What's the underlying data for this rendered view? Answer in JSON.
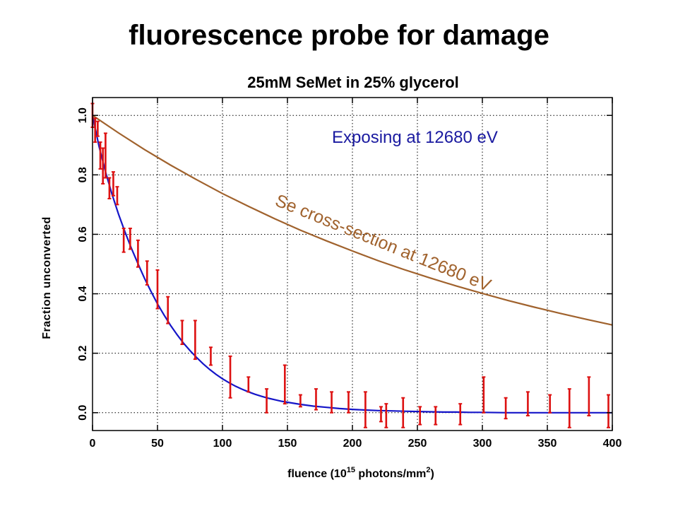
{
  "page": {
    "title": "fluorescence probe for damage"
  },
  "chart_data": {
    "type": "line",
    "title": "25mM SeMet in 25% glycerol",
    "xlabel": {
      "prefix": "fluence (10",
      "exp": "15",
      "mid": " photons/mm",
      "exp2": "2",
      "suffix": ")"
    },
    "ylabel": "Fraction unconverted",
    "xlim": [
      0,
      400
    ],
    "ylim": [
      -0.06,
      1.06
    ],
    "x_ticks": [
      0,
      50,
      100,
      150,
      200,
      250,
      300,
      350,
      400
    ],
    "x_tick_labels": [
      "0",
      "50",
      "100",
      "150",
      "200",
      "250",
      "300",
      "350",
      "400"
    ],
    "y_ticks": [
      0.0,
      0.2,
      0.4,
      0.6,
      0.8,
      1.0
    ],
    "y_tick_labels": [
      "0.0",
      "0.2",
      "0.4",
      "0.6",
      "0.8",
      "1.0"
    ],
    "grid": true,
    "annotations": [
      {
        "text": "Exposing at 12680 eV",
        "color": "#1a1aa0"
      },
      {
        "text": "Se cross-section at 12680 eV",
        "color": "#a0622d"
      }
    ],
    "series": [
      {
        "type": "errorbar",
        "color": "#dd1111",
        "points": [
          {
            "x": 0,
            "low": 0.96,
            "high": 1.04
          },
          {
            "x": 2,
            "low": 0.91,
            "high": 0.99
          },
          {
            "x": 4,
            "low": 0.93,
            "high": 0.98
          },
          {
            "x": 6,
            "low": 0.82,
            "high": 0.91
          },
          {
            "x": 8,
            "low": 0.77,
            "high": 0.89
          },
          {
            "x": 10,
            "low": 0.79,
            "high": 0.94
          },
          {
            "x": 13,
            "low": 0.72,
            "high": 0.79
          },
          {
            "x": 16,
            "low": 0.73,
            "high": 0.81
          },
          {
            "x": 19,
            "low": 0.7,
            "high": 0.76
          },
          {
            "x": 24,
            "low": 0.54,
            "high": 0.62
          },
          {
            "x": 29,
            "low": 0.55,
            "high": 0.62
          },
          {
            "x": 35,
            "low": 0.49,
            "high": 0.58
          },
          {
            "x": 42,
            "low": 0.43,
            "high": 0.51
          },
          {
            "x": 50,
            "low": 0.35,
            "high": 0.48
          },
          {
            "x": 58,
            "low": 0.3,
            "high": 0.39
          },
          {
            "x": 69,
            "low": 0.23,
            "high": 0.31
          },
          {
            "x": 79,
            "low": 0.18,
            "high": 0.31
          },
          {
            "x": 91,
            "low": 0.16,
            "high": 0.22
          },
          {
            "x": 106,
            "low": 0.05,
            "high": 0.19
          },
          {
            "x": 120,
            "low": 0.07,
            "high": 0.12
          },
          {
            "x": 134,
            "low": 0.0,
            "high": 0.08
          },
          {
            "x": 148,
            "low": 0.03,
            "high": 0.16
          },
          {
            "x": 160,
            "low": 0.02,
            "high": 0.06
          },
          {
            "x": 172,
            "low": 0.01,
            "high": 0.08
          },
          {
            "x": 184,
            "low": 0.0,
            "high": 0.07
          },
          {
            "x": 197,
            "low": 0.0,
            "high": 0.07
          },
          {
            "x": 210,
            "low": -0.05,
            "high": 0.07
          },
          {
            "x": 222,
            "low": -0.03,
            "high": 0.02
          },
          {
            "x": 226,
            "low": -0.05,
            "high": 0.03
          },
          {
            "x": 239,
            "low": -0.05,
            "high": 0.05
          },
          {
            "x": 252,
            "low": -0.04,
            "high": 0.02
          },
          {
            "x": 264,
            "low": -0.04,
            "high": 0.02
          },
          {
            "x": 283,
            "low": -0.04,
            "high": 0.03
          },
          {
            "x": 301,
            "low": 0.0,
            "high": 0.12
          },
          {
            "x": 318,
            "low": -0.02,
            "high": 0.05
          },
          {
            "x": 335,
            "low": -0.01,
            "high": 0.07
          },
          {
            "x": 352,
            "low": 0.0,
            "high": 0.06
          },
          {
            "x": 367,
            "low": -0.05,
            "high": 0.08
          },
          {
            "x": 382,
            "low": -0.01,
            "high": 0.12
          },
          {
            "x": 397,
            "low": -0.05,
            "high": 0.06
          }
        ]
      },
      {
        "type": "line",
        "color": "#1515c8",
        "x": [
          0,
          5,
          10,
          15,
          20,
          25,
          30,
          35,
          40,
          45,
          50,
          55,
          60,
          65,
          70,
          75,
          80,
          85,
          90,
          95,
          100,
          105,
          110,
          115,
          120,
          125,
          130,
          135,
          140,
          145,
          150,
          160,
          170,
          180,
          190,
          200,
          210,
          220,
          230,
          240,
          250,
          260,
          270,
          280,
          290,
          300,
          320,
          340,
          360,
          380,
          400
        ],
        "y": [
          1.0,
          0.896,
          0.81,
          0.735,
          0.668,
          0.608,
          0.552,
          0.501,
          0.452,
          0.408,
          0.366,
          0.329,
          0.294,
          0.263,
          0.234,
          0.209,
          0.186,
          0.165,
          0.146,
          0.129,
          0.114,
          0.101,
          0.089,
          0.079,
          0.07,
          0.062,
          0.055,
          0.049,
          0.044,
          0.039,
          0.035,
          0.028,
          0.022,
          0.018,
          0.014,
          0.011,
          0.009,
          0.007,
          0.006,
          0.005,
          0.004,
          0.003,
          0.002,
          0.002,
          0.001,
          0.001,
          0.0,
          0.0,
          0.0,
          0.0,
          0.0
        ]
      },
      {
        "type": "line",
        "color": "#a0622d",
        "x": [
          0,
          20,
          40,
          60,
          80,
          100,
          120,
          140,
          160,
          180,
          200,
          220,
          240,
          260,
          280,
          300,
          320,
          340,
          360,
          380,
          400
        ],
        "y": [
          1.0,
          0.941,
          0.885,
          0.833,
          0.784,
          0.737,
          0.694,
          0.653,
          0.614,
          0.578,
          0.544,
          0.511,
          0.481,
          0.453,
          0.426,
          0.401,
          0.377,
          0.355,
          0.334,
          0.314,
          0.295
        ]
      }
    ]
  }
}
